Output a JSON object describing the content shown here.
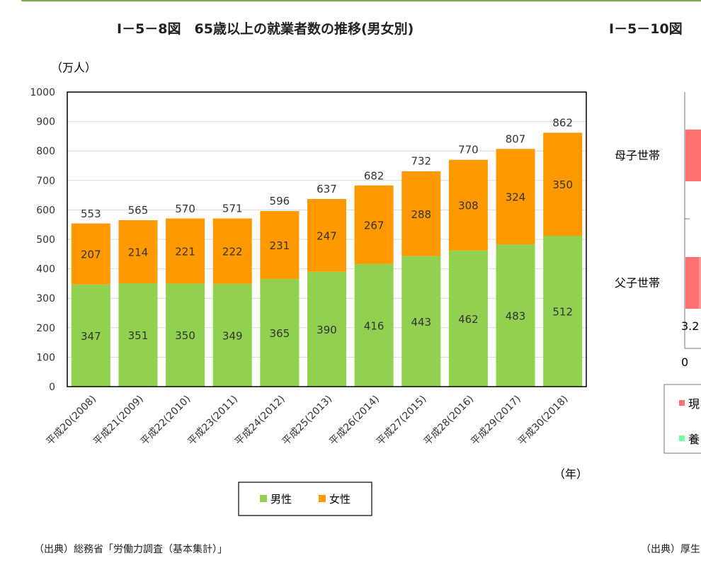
{
  "chart_data": {
    "type": "bar",
    "stacked": true,
    "title": "Ⅰ－5－8図　65歳以上の就業者数の推移(男女別)",
    "ylabel": "（万人）",
    "xlabel": "（年）",
    "ylim": [
      0,
      1000
    ],
    "yticks": [
      0,
      100,
      200,
      300,
      400,
      500,
      600,
      700,
      800,
      900,
      1000
    ],
    "grid": true,
    "legend_placement": "bottom",
    "categories": [
      "平成20(2008)",
      "平成21(2009)",
      "平成22(2010)",
      "平成23(2011)",
      "平成24(2012)",
      "平成25(2013)",
      "平成26(2014)",
      "平成27(2015)",
      "平成28(2016)",
      "平成29(2017)",
      "平成30(2018)"
    ],
    "series": [
      {
        "name": "男性",
        "color": "#92d050",
        "values": [
          347,
          351,
          350,
          349,
          365,
          390,
          416,
          443,
          462,
          483,
          512
        ]
      },
      {
        "name": "女性",
        "color": "#ff9900",
        "values": [
          207,
          214,
          221,
          222,
          231,
          247,
          267,
          288,
          308,
          324,
          350
        ]
      }
    ],
    "totals": [
      553,
      565,
      570,
      571,
      596,
      637,
      682,
      732,
      770,
      807,
      862
    ],
    "source": "（出典）総務省「労働力調査（基本集計）」"
  },
  "side_chart": {
    "title": "Ⅰ－5－10図",
    "categories": [
      "母子世帯",
      "父子世帯"
    ],
    "value_label": "3.2",
    "x_tick": "0",
    "legend": [
      {
        "label": "現",
        "color": "#ff7070"
      },
      {
        "label": "養",
        "color": "#70ff9f"
      }
    ],
    "source": "（出典）厚生"
  }
}
